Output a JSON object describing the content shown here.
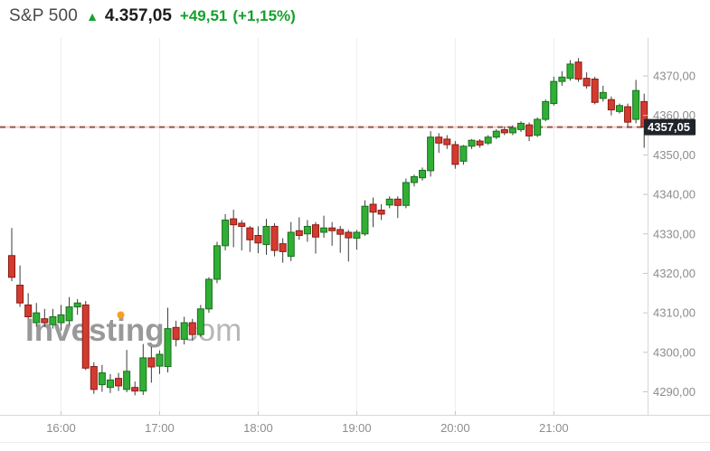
{
  "header": {
    "symbol": "S&P 500",
    "direction_arrow": "▲",
    "last_price": "4.357,05",
    "change": "+49,51",
    "change_percent": "(+1,15%)"
  },
  "watermark": {
    "brand": "Investing",
    "domain_suffix": ".com"
  },
  "last_price_tag": "4357,05",
  "colors": {
    "up_fill": "#31ae35",
    "up_stroke": "#17701c",
    "down_fill": "#d43b30",
    "down_stroke": "#8a1a12",
    "wick": "#3c3c3c",
    "grid": "#ededed",
    "axis_line": "#d8d8d8",
    "tick": "#c6c6c6",
    "axis_text": "#8c8c8c",
    "header_green": "#16a02c",
    "dashed_dark": "#96594f",
    "dashed_light": "#f3c7c0",
    "tag_bg": "#20242b",
    "tag_text": "#ffffff",
    "watermark_gray": "#999999",
    "watermark_light": "#b7b7b7",
    "watermark_dot": "#f6a11b"
  },
  "chart_data": {
    "type": "candlestick",
    "title": "S&P 500 intraday 5-minute candlestick chart",
    "interval_minutes": 5,
    "x_tick_labels": [
      "16:00",
      "17:00",
      "18:00",
      "19:00",
      "20:00",
      "21:00"
    ],
    "y_tick_labels": [
      "4370,00",
      "4360,00",
      "4350,00",
      "4340,00",
      "4330,00",
      "4320,00",
      "4310,00",
      "4300,00",
      "4290,00"
    ],
    "y_tick_values": [
      4370,
      4360,
      4350,
      4340,
      4330,
      4320,
      4310,
      4300,
      4290
    ],
    "ylim": [
      4285,
      4378
    ],
    "last_price": 4357.05,
    "legend_position": "none",
    "grid": "vertical-only",
    "candles": [
      {
        "t": "15:30",
        "o": 4324.5,
        "h": 4331.5,
        "l": 4318.0,
        "c": 4319.0
      },
      {
        "t": "15:35",
        "o": 4317.0,
        "h": 4322.0,
        "l": 4311.5,
        "c": 4312.5
      },
      {
        "t": "15:40",
        "o": 4312.0,
        "h": 4315.0,
        "l": 4308.5,
        "c": 4309.0
      },
      {
        "t": "15:45",
        "o": 4307.5,
        "h": 4312.5,
        "l": 4306.5,
        "c": 4310.0
      },
      {
        "t": "15:50",
        "o": 4308.5,
        "h": 4311.0,
        "l": 4306.5,
        "c": 4307.5
      },
      {
        "t": "15:55",
        "o": 4307.0,
        "h": 4311.0,
        "l": 4306.0,
        "c": 4309.0
      },
      {
        "t": "16:00",
        "o": 4307.5,
        "h": 4312.0,
        "l": 4305.5,
        "c": 4309.5
      },
      {
        "t": "16:05",
        "o": 4308.0,
        "h": 4314.0,
        "l": 4307.0,
        "c": 4311.5
      },
      {
        "t": "16:10",
        "o": 4311.5,
        "h": 4313.5,
        "l": 4309.5,
        "c": 4312.5
      },
      {
        "t": "16:15",
        "o": 4312.0,
        "h": 4313.0,
        "l": 4295.5,
        "c": 4296.0
      },
      {
        "t": "16:20",
        "o": 4296.4,
        "h": 4297.5,
        "l": 4289.5,
        "c": 4290.6
      },
      {
        "t": "16:25",
        "o": 4291.8,
        "h": 4296.8,
        "l": 4290.0,
        "c": 4294.8
      },
      {
        "t": "16:30",
        "o": 4291.1,
        "h": 4294.5,
        "l": 4289.7,
        "c": 4293.0
      },
      {
        "t": "16:35",
        "o": 4293.4,
        "h": 4294.8,
        "l": 4290.2,
        "c": 4291.5
      },
      {
        "t": "16:40",
        "o": 4290.6,
        "h": 4300.6,
        "l": 4289.9,
        "c": 4295.2
      },
      {
        "t": "16:45",
        "o": 4291.1,
        "h": 4292.6,
        "l": 4289.1,
        "c": 4290.2
      },
      {
        "t": "16:50",
        "o": 4290.2,
        "h": 4302.1,
        "l": 4289.2,
        "c": 4298.6
      },
      {
        "t": "16:55",
        "o": 4298.6,
        "h": 4301.4,
        "l": 4292.3,
        "c": 4296.3
      },
      {
        "t": "17:00",
        "o": 4296.5,
        "h": 4300.5,
        "l": 4294.5,
        "c": 4299.5
      },
      {
        "t": "17:05",
        "o": 4296.4,
        "h": 4311.3,
        "l": 4294.9,
        "c": 4306.0
      },
      {
        "t": "17:10",
        "o": 4306.3,
        "h": 4308.0,
        "l": 4301.5,
        "c": 4303.3
      },
      {
        "t": "17:15",
        "o": 4303.3,
        "h": 4309.0,
        "l": 4302.0,
        "c": 4307.5
      },
      {
        "t": "17:20",
        "o": 4307.5,
        "h": 4308.5,
        "l": 4303.0,
        "c": 4304.5
      },
      {
        "t": "17:25",
        "o": 4304.5,
        "h": 4312.0,
        "l": 4304.0,
        "c": 4311.0
      },
      {
        "t": "17:30",
        "o": 4311.0,
        "h": 4319.0,
        "l": 4310.0,
        "c": 4318.5
      },
      {
        "t": "17:35",
        "o": 4318.5,
        "h": 4328.0,
        "l": 4317.5,
        "c": 4327.0
      },
      {
        "t": "17:40",
        "o": 4327.0,
        "h": 4335.0,
        "l": 4325.8,
        "c": 4333.5
      },
      {
        "t": "17:45",
        "o": 4333.8,
        "h": 4336.1,
        "l": 4326.6,
        "c": 4332.3
      },
      {
        "t": "17:50",
        "o": 4332.7,
        "h": 4333.5,
        "l": 4325.8,
        "c": 4331.9
      },
      {
        "t": "17:55",
        "o": 4331.5,
        "h": 4332.0,
        "l": 4325.4,
        "c": 4328.5
      },
      {
        "t": "18:00",
        "o": 4329.6,
        "h": 4331.9,
        "l": 4325.1,
        "c": 4327.7
      },
      {
        "t": "18:05",
        "o": 4327.3,
        "h": 4333.8,
        "l": 4324.7,
        "c": 4331.9
      },
      {
        "t": "18:10",
        "o": 4331.9,
        "h": 4332.7,
        "l": 4324.3,
        "c": 4325.8
      },
      {
        "t": "18:15",
        "o": 4327.5,
        "h": 4328.9,
        "l": 4322.7,
        "c": 4325.5
      },
      {
        "t": "18:20",
        "o": 4324.3,
        "h": 4333.0,
        "l": 4323.1,
        "c": 4330.4
      },
      {
        "t": "18:25",
        "o": 4330.8,
        "h": 4334.2,
        "l": 4328.5,
        "c": 4329.6
      },
      {
        "t": "18:30",
        "o": 4330.0,
        "h": 4333.5,
        "l": 4328.0,
        "c": 4331.9
      },
      {
        "t": "18:35",
        "o": 4332.3,
        "h": 4333.0,
        "l": 4325.0,
        "c": 4329.2
      },
      {
        "t": "18:40",
        "o": 4330.4,
        "h": 4334.6,
        "l": 4329.0,
        "c": 4331.5
      },
      {
        "t": "18:45",
        "o": 4331.5,
        "h": 4333.0,
        "l": 4327.0,
        "c": 4330.8
      },
      {
        "t": "18:50",
        "o": 4331.1,
        "h": 4332.0,
        "l": 4325.2,
        "c": 4329.9
      },
      {
        "t": "18:55",
        "o": 4330.4,
        "h": 4331.0,
        "l": 4323.0,
        "c": 4329.0
      },
      {
        "t": "19:00",
        "o": 4328.9,
        "h": 4331.0,
        "l": 4326.0,
        "c": 4330.4
      },
      {
        "t": "19:05",
        "o": 4330.0,
        "h": 4338.5,
        "l": 4329.5,
        "c": 4337.0
      },
      {
        "t": "19:10",
        "o": 4337.5,
        "h": 4339.2,
        "l": 4331.7,
        "c": 4335.5
      },
      {
        "t": "19:15",
        "o": 4336.0,
        "h": 4337.5,
        "l": 4333.5,
        "c": 4335.0
      },
      {
        "t": "19:20",
        "o": 4337.3,
        "h": 4339.5,
        "l": 4336.5,
        "c": 4338.8
      },
      {
        "t": "19:25",
        "o": 4338.8,
        "h": 4339.5,
        "l": 4334.0,
        "c": 4337.2
      },
      {
        "t": "19:30",
        "o": 4337.2,
        "h": 4344.0,
        "l": 4336.5,
        "c": 4343.0
      },
      {
        "t": "19:35",
        "o": 4343.0,
        "h": 4345.0,
        "l": 4342.0,
        "c": 4344.5
      },
      {
        "t": "19:40",
        "o": 4344.2,
        "h": 4346.8,
        "l": 4343.5,
        "c": 4346.1
      },
      {
        "t": "19:45",
        "o": 4346.0,
        "h": 4356.0,
        "l": 4344.5,
        "c": 4354.5
      },
      {
        "t": "19:50",
        "o": 4354.5,
        "h": 4355.5,
        "l": 4350.5,
        "c": 4353.0
      },
      {
        "t": "19:55",
        "o": 4354.0,
        "h": 4355.0,
        "l": 4351.5,
        "c": 4352.6
      },
      {
        "t": "20:00",
        "o": 4352.6,
        "h": 4353.5,
        "l": 4346.5,
        "c": 4347.6
      },
      {
        "t": "20:05",
        "o": 4348.4,
        "h": 4352.5,
        "l": 4347.5,
        "c": 4352.2
      },
      {
        "t": "20:10",
        "o": 4352.2,
        "h": 4354.0,
        "l": 4351.5,
        "c": 4353.7
      },
      {
        "t": "20:15",
        "o": 4353.5,
        "h": 4354.0,
        "l": 4351.8,
        "c": 4352.5
      },
      {
        "t": "20:20",
        "o": 4353.0,
        "h": 4355.0,
        "l": 4352.5,
        "c": 4354.5
      },
      {
        "t": "20:25",
        "o": 4354.5,
        "h": 4356.5,
        "l": 4354.0,
        "c": 4356.0
      },
      {
        "t": "20:30",
        "o": 4356.4,
        "h": 4357.2,
        "l": 4355.0,
        "c": 4355.6
      },
      {
        "t": "20:35",
        "o": 4355.6,
        "h": 4357.5,
        "l": 4355.0,
        "c": 4356.8
      },
      {
        "t": "20:40",
        "o": 4356.4,
        "h": 4358.5,
        "l": 4355.8,
        "c": 4358.0
      },
      {
        "t": "20:45",
        "o": 4357.6,
        "h": 4358.2,
        "l": 4353.5,
        "c": 4354.8
      },
      {
        "t": "20:50",
        "o": 4355.0,
        "h": 4359.5,
        "l": 4354.5,
        "c": 4359.0
      },
      {
        "t": "20:55",
        "o": 4359.0,
        "h": 4364.0,
        "l": 4358.5,
        "c": 4363.5
      },
      {
        "t": "21:00",
        "o": 4363.0,
        "h": 4369.8,
        "l": 4362.5,
        "c": 4368.6
      },
      {
        "t": "21:05",
        "o": 4368.6,
        "h": 4371.2,
        "l": 4367.5,
        "c": 4369.7
      },
      {
        "t": "21:10",
        "o": 4369.4,
        "h": 4374.0,
        "l": 4368.8,
        "c": 4373.0
      },
      {
        "t": "21:15",
        "o": 4373.5,
        "h": 4374.5,
        "l": 4368.5,
        "c": 4369.2
      },
      {
        "t": "21:20",
        "o": 4369.4,
        "h": 4370.9,
        "l": 4366.8,
        "c": 4367.5
      },
      {
        "t": "21:25",
        "o": 4369.2,
        "h": 4369.8,
        "l": 4362.8,
        "c": 4363.3
      },
      {
        "t": "21:30",
        "o": 4364.3,
        "h": 4367.5,
        "l": 4363.5,
        "c": 4365.8
      },
      {
        "t": "21:35",
        "o": 4364.0,
        "h": 4364.8,
        "l": 4360.0,
        "c": 4361.4
      },
      {
        "t": "21:40",
        "o": 4361.0,
        "h": 4363.0,
        "l": 4360.5,
        "c": 4362.5
      },
      {
        "t": "21:45",
        "o": 4362.2,
        "h": 4363.0,
        "l": 4357.0,
        "c": 4358.3
      },
      {
        "t": "21:50",
        "o": 4359.0,
        "h": 4369.0,
        "l": 4358.0,
        "c": 4366.3
      },
      {
        "t": "21:55",
        "o": 4363.5,
        "h": 4365.5,
        "l": 4351.8,
        "c": 4357.05
      }
    ]
  }
}
